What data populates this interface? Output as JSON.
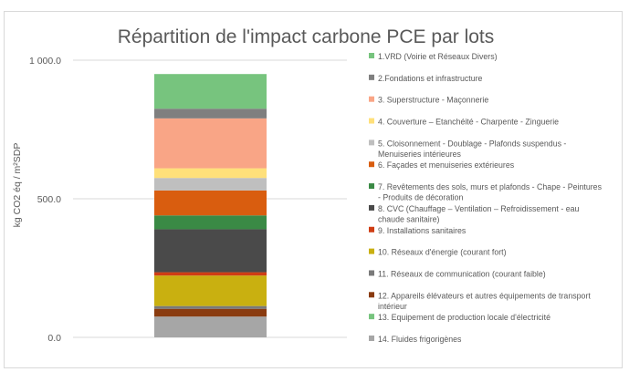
{
  "chart_data": {
    "type": "bar",
    "stacked": true,
    "title": "Répartition de l'impact carbone PCE par lots",
    "ylabel": "kg CO2 éq / m²SDP",
    "xlabel": "",
    "ylim": [
      0,
      1000
    ],
    "yticks": [
      "0.0",
      "500.0",
      "1 000.0"
    ],
    "ytick_values": [
      0,
      500,
      1000
    ],
    "grid": true,
    "legend_position": "right",
    "categories": [
      ""
    ],
    "series": [
      {
        "name": "1.VRD (Voirie et Réseaux Divers)",
        "value": 125,
        "color": "#77c47e"
      },
      {
        "name": "2.Fondations et infrastructure",
        "value": 35,
        "color": "#7f7f7f"
      },
      {
        "name": "3. Superstructure - Maçonnerie",
        "value": 180,
        "color": "#f9a586"
      },
      {
        "name": "4. Couverture – Etanchéité - Charpente - Zinguerie",
        "value": 35,
        "color": "#ffe07a"
      },
      {
        "name": "5. Cloisonnement - Doublage - Plafonds suspendus - Menuiseries intérieures",
        "value": 45,
        "color": "#bfbfbf"
      },
      {
        "name": "6. Façades et menuiseries extérieures",
        "value": 90,
        "color": "#d95d0f"
      },
      {
        "name": "7. Revêtements des sols, murs et plafonds - Chape - Peintures - Produits de décoration",
        "value": 50,
        "color": "#3a8a45"
      },
      {
        "name": "8. CVC (Chauffage – Ventilation – Refroidissement - eau chaude sanitaire)",
        "value": 155,
        "color": "#4a4a4a"
      },
      {
        "name": "9. Installations sanitaires",
        "value": 12,
        "color": "#cf3d14"
      },
      {
        "name": "10. Réseaux d'énergie (courant fort)",
        "value": 110,
        "color": "#c9b010"
      },
      {
        "name": "11. Réseaux de communication (courant faible)",
        "value": 10,
        "color": "#7a7a7a"
      },
      {
        "name": "12. Appareils élévateurs et autres équipements de transport intérieur",
        "value": 28,
        "color": "#8a3b0f"
      },
      {
        "name": "13. Equipement de production locale d'électricité",
        "value": 0,
        "color": "#77c47e"
      },
      {
        "name": "14. Fluides frigorigènes",
        "value": 75,
        "color": "#a6a6a6"
      }
    ]
  }
}
